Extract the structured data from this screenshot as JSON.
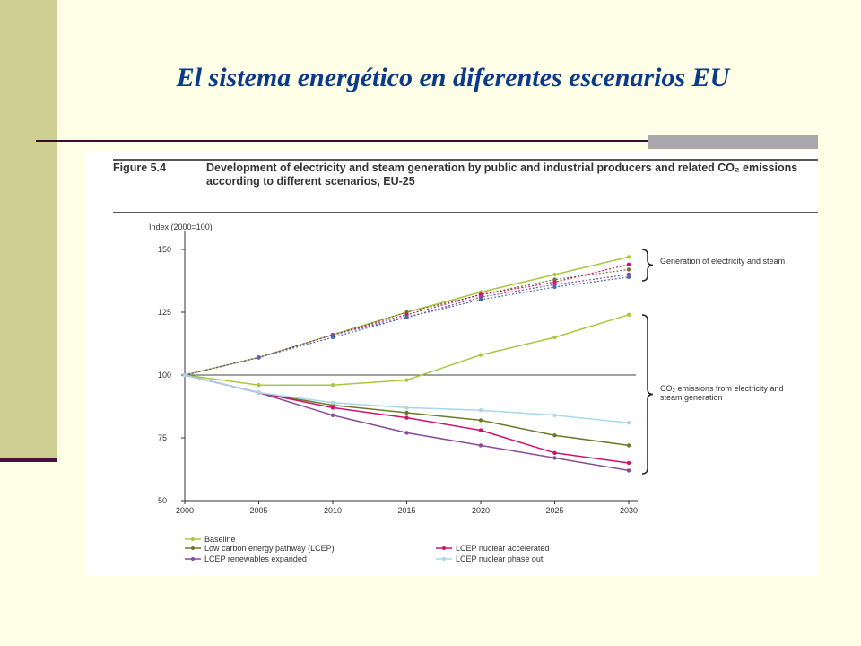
{
  "slide": {
    "title": "El sistema energético en diferentes escenarios EU"
  },
  "figure": {
    "caption_label": "Figure 5.4",
    "caption_text": "Development of electricity and steam generation by public and industrial producers and related CO₂ emissions according to different scenarios, EU-25",
    "annotation_generation": "Generation of electricity and steam",
    "annotation_emissions": "CO₂ emissions from electricity and steam generation"
  },
  "chart_data": {
    "type": "line",
    "title": "Figure 5.4 Development of electricity and steam generation by public and industrial producers and related CO₂ emissions according to different scenarios, EU-25",
    "ylabel": "Index (2000=100)",
    "xlabel": "",
    "x": [
      2000,
      2005,
      2010,
      2015,
      2020,
      2025,
      2030
    ],
    "xticks": [
      "2000",
      "2005",
      "2010",
      "2015",
      "2020",
      "2025",
      "2030"
    ],
    "yticks": [
      "50",
      "75",
      "100",
      "125",
      "150"
    ],
    "ylim": [
      50,
      150
    ],
    "grid": false,
    "legend_position": "bottom",
    "colors": {
      "baseline": "#a8c840",
      "lcep": "#6a7a2a",
      "nuclear_accel": "#d0106a",
      "renewables": "#8a4a9a",
      "phase_out": "#a8d8e8",
      "gen_blue": "#4a6ab0"
    },
    "series": [
      {
        "name": "Baseline",
        "group": "generation",
        "values": [
          100,
          107,
          116,
          125,
          133,
          140,
          147
        ]
      },
      {
        "name": "Low carbon energy pathway (LCEP)",
        "group": "generation",
        "values": [
          100,
          107,
          116,
          125,
          132,
          138,
          142
        ]
      },
      {
        "name": "LCEP nuclear accelerated",
        "group": "generation",
        "values": [
          100,
          107,
          116,
          124,
          132,
          137,
          144
        ]
      },
      {
        "name": "LCEP renewables expanded",
        "group": "generation",
        "values": [
          100,
          107,
          116,
          123,
          131,
          136,
          140
        ]
      },
      {
        "name": "LCEP nuclear phase out",
        "group": "generation",
        "values": [
          100,
          107,
          115,
          123,
          130,
          135,
          139
        ]
      },
      {
        "name": "Baseline",
        "group": "emissions",
        "values": [
          100,
          96,
          96,
          98,
          108,
          115,
          124
        ]
      },
      {
        "name": "Low carbon energy pathway (LCEP)",
        "group": "emissions",
        "values": [
          100,
          93,
          88,
          85,
          82,
          76,
          72
        ]
      },
      {
        "name": "LCEP nuclear accelerated",
        "group": "emissions",
        "values": [
          100,
          93,
          87,
          83,
          78,
          69,
          65
        ]
      },
      {
        "name": "LCEP renewables expanded",
        "group": "emissions",
        "values": [
          100,
          93,
          84,
          77,
          72,
          67,
          62
        ]
      },
      {
        "name": "LCEP nuclear phase out",
        "group": "emissions",
        "values": [
          100,
          93,
          89,
          87,
          86,
          84,
          81
        ]
      }
    ],
    "legend": [
      {
        "label": "Baseline",
        "color": "#a8c840"
      },
      {
        "label": "Low carbon energy pathway (LCEP)",
        "color": "#6a7a2a"
      },
      {
        "label": "LCEP nuclear accelerated",
        "color": "#d0106a"
      },
      {
        "label": "LCEP renewables expanded",
        "color": "#8a4a9a"
      },
      {
        "label": "LCEP nuclear phase out",
        "color": "#a8d8e8"
      }
    ]
  }
}
